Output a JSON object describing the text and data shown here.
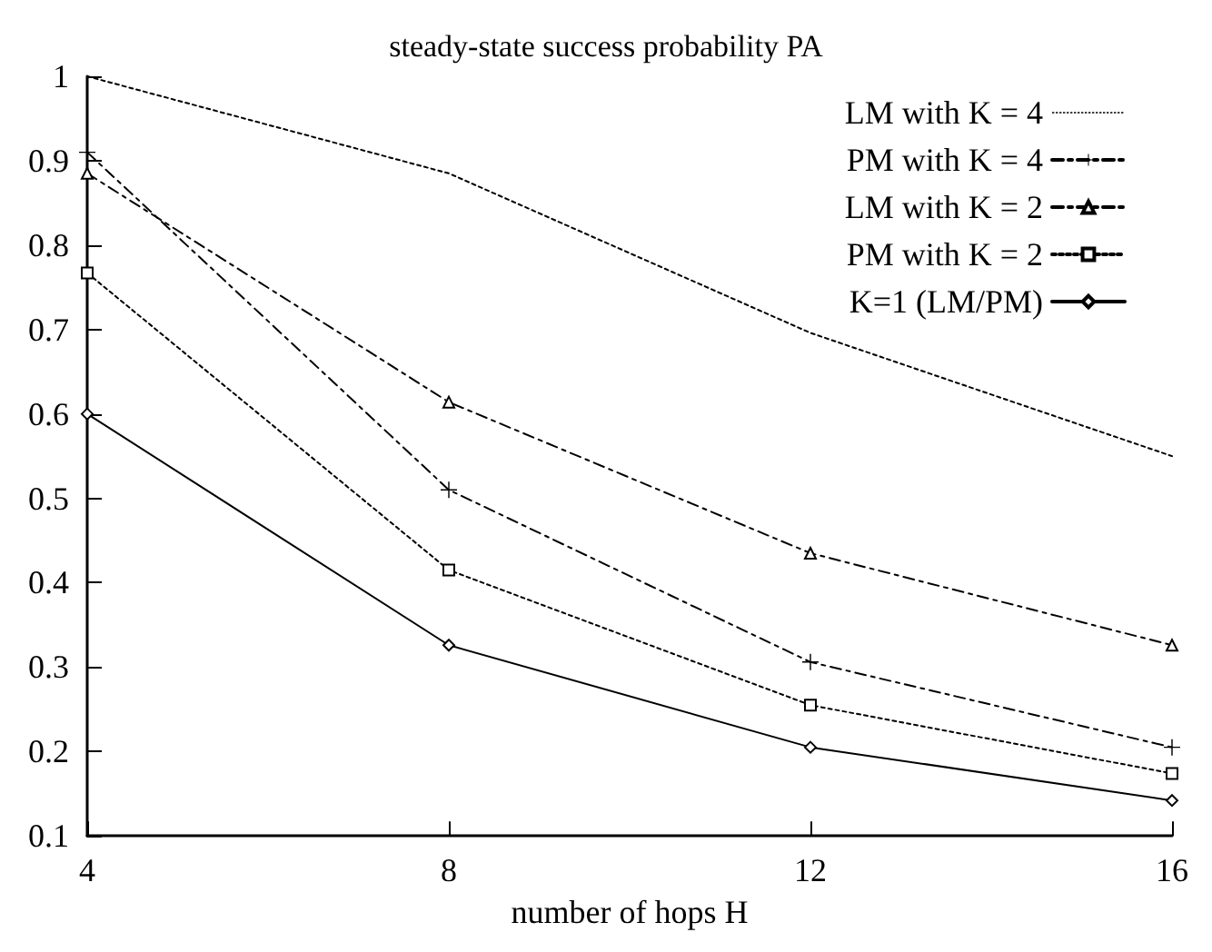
{
  "chart_data": {
    "type": "line",
    "title": "steady-state success probability PA",
    "xlabel": "number of hops H",
    "x": [
      4,
      8,
      12,
      16
    ],
    "series": [
      {
        "name": "LM with K = 4",
        "color": "#000000",
        "values": [
          1.0,
          0.885,
          0.696,
          0.55
        ],
        "marker": "none",
        "line_style": "dotted"
      },
      {
        "name": "PM with K = 4",
        "color": "#000000",
        "values": [
          0.91,
          0.51,
          0.306,
          0.205
        ],
        "marker": "cross",
        "line_style": "dashed"
      },
      {
        "name": "LM with K = 2",
        "color": "#000000",
        "values": [
          0.885,
          0.614,
          0.435,
          0.326
        ],
        "marker": "triangle",
        "line_style": "dashed"
      },
      {
        "name": "PM with K = 2",
        "color": "#000000",
        "values": [
          0.767,
          0.415,
          0.255,
          0.174
        ],
        "marker": "square",
        "line_style": "dotted"
      },
      {
        "name": "K=1 (LM/PM)",
        "color": "#000000",
        "values": [
          0.6,
          0.326,
          0.205,
          0.142
        ],
        "marker": "diamond",
        "line_style": "solid"
      }
    ],
    "xlim": [
      4,
      16
    ],
    "xticks": [
      4,
      8,
      12,
      16
    ],
    "ylim": [
      0.1,
      1
    ],
    "yticks": [
      0.1,
      0.2,
      0.3,
      0.4,
      0.5,
      0.6,
      0.7,
      0.8,
      0.9,
      1
    ],
    "grid": false,
    "legend": "top right"
  }
}
